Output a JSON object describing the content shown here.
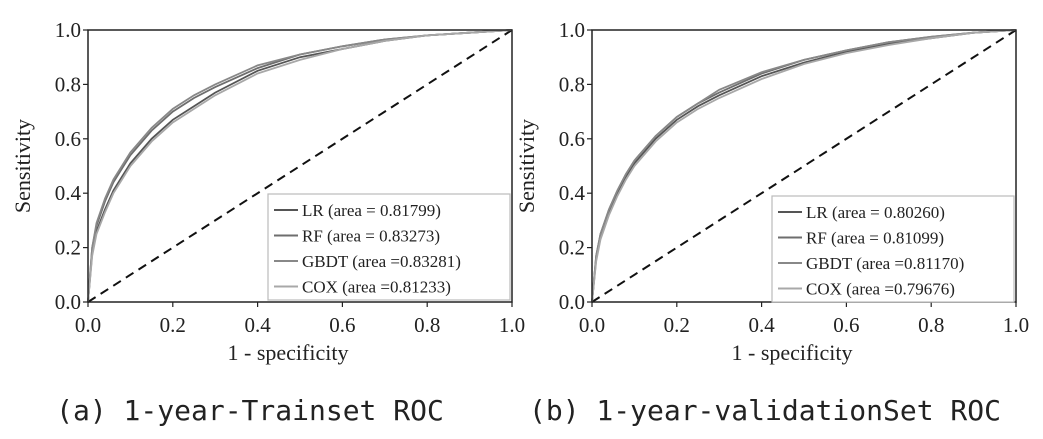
{
  "chart_data": [
    {
      "type": "line",
      "caption": "(a) 1-year-Trainset ROC",
      "xlabel": "1 - specificity",
      "ylabel": "Sensitivity",
      "xlim": [
        0,
        1
      ],
      "ylim": [
        0,
        1
      ],
      "xticks": [
        "0.0",
        "0.2",
        "0.4",
        "0.6",
        "0.8",
        "1.0"
      ],
      "yticks": [
        "0.0",
        "0.2",
        "0.4",
        "0.6",
        "0.8",
        "1.0"
      ],
      "legend_position": "bottom-right",
      "diagonal": true,
      "series": [
        {
          "name": "LR (area = 0.81799)",
          "color": "#555555",
          "x": [
            0,
            0.01,
            0.02,
            0.04,
            0.06,
            0.08,
            0.1,
            0.15,
            0.2,
            0.25,
            0.3,
            0.4,
            0.5,
            0.6,
            0.7,
            0.8,
            0.9,
            1.0
          ],
          "y": [
            0,
            0.18,
            0.26,
            0.34,
            0.41,
            0.46,
            0.51,
            0.6,
            0.67,
            0.72,
            0.77,
            0.85,
            0.9,
            0.93,
            0.96,
            0.98,
            0.99,
            1.0
          ]
        },
        {
          "name": "RF (area = 0.83273)",
          "color": "#6e6e6e",
          "x": [
            0,
            0.01,
            0.02,
            0.04,
            0.06,
            0.08,
            0.1,
            0.15,
            0.2,
            0.25,
            0.3,
            0.4,
            0.5,
            0.6,
            0.7,
            0.8,
            0.9,
            1.0
          ],
          "y": [
            0,
            0.2,
            0.28,
            0.37,
            0.44,
            0.49,
            0.54,
            0.63,
            0.7,
            0.75,
            0.79,
            0.86,
            0.91,
            0.94,
            0.965,
            0.98,
            0.99,
            1.0
          ]
        },
        {
          "name": "GBDT (area =0.83281)",
          "color": "#888888",
          "x": [
            0,
            0.01,
            0.02,
            0.04,
            0.06,
            0.08,
            0.1,
            0.15,
            0.2,
            0.25,
            0.3,
            0.4,
            0.5,
            0.6,
            0.7,
            0.8,
            0.9,
            1.0
          ],
          "y": [
            0,
            0.2,
            0.29,
            0.38,
            0.45,
            0.5,
            0.55,
            0.64,
            0.71,
            0.76,
            0.8,
            0.87,
            0.91,
            0.94,
            0.965,
            0.98,
            0.99,
            1.0
          ]
        },
        {
          "name": "COX (area =0.81233)",
          "color": "#a8a8a8",
          "x": [
            0,
            0.01,
            0.02,
            0.04,
            0.06,
            0.08,
            0.1,
            0.15,
            0.2,
            0.25,
            0.3,
            0.4,
            0.5,
            0.6,
            0.7,
            0.8,
            0.9,
            1.0
          ],
          "y": [
            0,
            0.17,
            0.25,
            0.33,
            0.4,
            0.45,
            0.5,
            0.59,
            0.66,
            0.71,
            0.76,
            0.84,
            0.89,
            0.93,
            0.96,
            0.98,
            0.99,
            1.0
          ]
        }
      ]
    },
    {
      "type": "line",
      "caption": "(b) 1-year-validationSet ROC",
      "xlabel": "1 - specificity",
      "ylabel": "Sensitivity",
      "xlim": [
        0,
        1
      ],
      "ylim": [
        0,
        1
      ],
      "xticks": [
        "0.0",
        "0.2",
        "0.4",
        "0.6",
        "0.8",
        "1.0"
      ],
      "yticks": [
        "0.0",
        "0.2",
        "0.4",
        "0.6",
        "0.8",
        "1.0"
      ],
      "legend_position": "bottom-right",
      "diagonal": true,
      "series": [
        {
          "name": "LR (area = 0.80260)",
          "color": "#555555",
          "x": [
            0,
            0.01,
            0.02,
            0.04,
            0.06,
            0.08,
            0.1,
            0.15,
            0.2,
            0.25,
            0.3,
            0.4,
            0.5,
            0.6,
            0.7,
            0.8,
            0.9,
            1.0
          ],
          "y": [
            0,
            0.16,
            0.24,
            0.33,
            0.4,
            0.46,
            0.51,
            0.6,
            0.67,
            0.72,
            0.76,
            0.83,
            0.88,
            0.92,
            0.95,
            0.97,
            0.99,
            1.0
          ]
        },
        {
          "name": "RF (area = 0.81099)",
          "color": "#6e6e6e",
          "x": [
            0,
            0.01,
            0.02,
            0.04,
            0.06,
            0.08,
            0.1,
            0.15,
            0.2,
            0.25,
            0.3,
            0.4,
            0.5,
            0.6,
            0.7,
            0.8,
            0.9,
            1.0
          ],
          "y": [
            0,
            0.17,
            0.25,
            0.34,
            0.41,
            0.47,
            0.52,
            0.61,
            0.68,
            0.73,
            0.77,
            0.84,
            0.89,
            0.925,
            0.955,
            0.975,
            0.99,
            1.0
          ]
        },
        {
          "name": "GBDT (area =0.81170)",
          "color": "#888888",
          "x": [
            0,
            0.01,
            0.02,
            0.04,
            0.06,
            0.08,
            0.1,
            0.15,
            0.2,
            0.25,
            0.3,
            0.4,
            0.5,
            0.6,
            0.7,
            0.8,
            0.9,
            1.0
          ],
          "y": [
            0,
            0.17,
            0.25,
            0.34,
            0.41,
            0.47,
            0.52,
            0.61,
            0.68,
            0.73,
            0.78,
            0.845,
            0.89,
            0.925,
            0.955,
            0.975,
            0.99,
            1.0
          ]
        },
        {
          "name": "COX (area =0.79676)",
          "color": "#a8a8a8",
          "x": [
            0,
            0.01,
            0.02,
            0.04,
            0.06,
            0.08,
            0.1,
            0.15,
            0.2,
            0.25,
            0.3,
            0.4,
            0.5,
            0.6,
            0.7,
            0.8,
            0.9,
            1.0
          ],
          "y": [
            0,
            0.15,
            0.23,
            0.32,
            0.39,
            0.45,
            0.5,
            0.59,
            0.66,
            0.71,
            0.75,
            0.82,
            0.875,
            0.915,
            0.945,
            0.97,
            0.99,
            1.0
          ]
        }
      ]
    }
  ]
}
